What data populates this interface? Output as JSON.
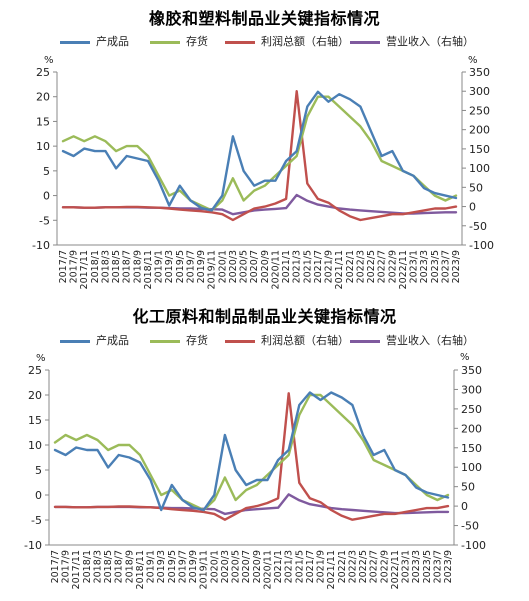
{
  "colors": {
    "product": "#4a7fb5",
    "inventory": "#9bbb59",
    "profit": "#c0504d",
    "revenue": "#7f5a9e",
    "axis": "#888888",
    "text": "#222222"
  },
  "chart_data": [
    {
      "type": "line",
      "title": "橡胶和塑料制品业关键指标情况",
      "left_unit": "%",
      "right_unit": "%",
      "ylim_left": [
        -10,
        25
      ],
      "ylim_right": [
        -100,
        350
      ],
      "yticks_left": [
        "25",
        "20",
        "15",
        "10",
        "5",
        "0",
        "-5",
        "-10"
      ],
      "yticks_right": [
        "350",
        "300",
        "250",
        "200",
        "150",
        "100",
        "50",
        "0",
        "-50",
        "-100"
      ],
      "categories": [
        "2017/7",
        "2017/9",
        "2017/11",
        "2018/1",
        "2018/3",
        "2018/5",
        "2018/7",
        "2018/9",
        "2018/11",
        "2019/1",
        "2019/3",
        "2019/5",
        "2019/7",
        "2019/9",
        "2019/11",
        "2020/1",
        "2020/3",
        "2020/5",
        "2020/7",
        "2020/9",
        "2020/11",
        "2021/1",
        "2021/3",
        "2021/5",
        "2021/7",
        "2021/9",
        "2021/11",
        "2022/1",
        "2022/3",
        "2022/5",
        "2022/7",
        "2022/9",
        "2022/11",
        "2023/1",
        "2023/3",
        "2023/5",
        "2023/7",
        "2023/9"
      ],
      "series": [
        {
          "name": "产成品",
          "axis": "left",
          "color_key": "product",
          "values": [
            9,
            8,
            9.5,
            9,
            9,
            5.5,
            8,
            7.5,
            7,
            3,
            -2,
            2,
            -1,
            -2.5,
            -3,
            0,
            12,
            5,
            2,
            3,
            3,
            7,
            9,
            18,
            21,
            19,
            20.5,
            19.5,
            18,
            13,
            8,
            9,
            5,
            4,
            1.5,
            0.5,
            0,
            -0.5
          ]
        },
        {
          "name": "存货",
          "axis": "left",
          "color_key": "inventory",
          "values": [
            11,
            12,
            11,
            12,
            11,
            9,
            10,
            10,
            8,
            4,
            0,
            1,
            -1,
            -2,
            -3,
            -1,
            3.5,
            -1,
            1,
            2,
            4,
            6,
            8,
            16,
            20,
            20,
            18,
            16,
            14,
            11,
            7,
            6,
            5,
            4,
            2,
            0,
            -1,
            0
          ]
        },
        {
          "name": "利润总额（右轴）",
          "axis": "right",
          "color_key": "profit",
          "values": [
            -2,
            -2,
            -3,
            -3,
            -2,
            -2,
            -1,
            -1,
            -2,
            -3,
            -5,
            -8,
            -10,
            -12,
            -15,
            -20,
            -35,
            -20,
            -5,
            0,
            8,
            20,
            300,
            60,
            20,
            10,
            -10,
            -25,
            -35,
            -30,
            -25,
            -20,
            -20,
            -15,
            -10,
            -5,
            -5,
            0
          ]
        },
        {
          "name": "营业收入（右轴）",
          "axis": "right",
          "color_key": "revenue",
          "values": [
            -2,
            -2,
            -3,
            -3,
            -2,
            -2,
            -2,
            -2,
            -3,
            -3,
            -4,
            -5,
            -5,
            -6,
            -7,
            -8,
            -20,
            -15,
            -10,
            -8,
            -6,
            -4,
            30,
            15,
            5,
            0,
            -5,
            -8,
            -10,
            -12,
            -14,
            -16,
            -18,
            -18,
            -17,
            -16,
            -15,
            -15
          ]
        }
      ]
    },
    {
      "type": "line",
      "title": "化工原料和制品制品业关键指标情况",
      "left_unit": "%",
      "right_unit": "%",
      "ylim_left": [
        -10,
        25
      ],
      "ylim_right": [
        -100,
        350
      ],
      "yticks_left": [
        "25",
        "20",
        "15",
        "10",
        "5",
        "0",
        "-5",
        "-10"
      ],
      "yticks_right": [
        "350",
        "300",
        "250",
        "200",
        "150",
        "100",
        "50",
        "0",
        "-50",
        "-100"
      ],
      "categories": [
        "2017/7",
        "2017/9",
        "2017/11",
        "2018/1",
        "2018/3",
        "2018/5",
        "2018/7",
        "2018/9",
        "2018/11",
        "2019/1",
        "2019/3",
        "2019/5",
        "2019/7",
        "2019/9",
        "2019/11",
        "2020/1",
        "2020/3",
        "2020/5",
        "2020/7",
        "2020/9",
        "2020/11",
        "2021/1",
        "2021/3",
        "2021/5",
        "2021/7",
        "2021/9",
        "2021/11",
        "2022/1",
        "2022/3",
        "2022/5",
        "2022/7",
        "2022/9",
        "2022/11",
        "2023/1",
        "2023/3",
        "2023/5",
        "2023/7",
        "2023/9"
      ],
      "series": [
        {
          "name": "产成品",
          "axis": "left",
          "color_key": "product",
          "values": [
            9,
            8,
            9.5,
            9,
            9,
            5.5,
            8,
            7.5,
            6.5,
            3,
            -3,
            2,
            -1,
            -2.5,
            -3,
            0,
            12,
            5,
            2,
            3,
            3,
            7,
            9,
            18,
            20.5,
            19,
            20.5,
            19.5,
            18,
            12,
            8,
            9,
            5,
            4,
            1.5,
            0.5,
            0,
            -0.5
          ]
        },
        {
          "name": "存货",
          "axis": "left",
          "color_key": "inventory",
          "values": [
            10.5,
            12,
            11,
            12,
            11,
            9,
            10,
            10,
            8,
            4,
            0,
            1,
            -1,
            -2,
            -3,
            -1,
            3.5,
            -1,
            1,
            2,
            4,
            6,
            8,
            16,
            20,
            20,
            18,
            16,
            14,
            11,
            7,
            6,
            5,
            4,
            2,
            0,
            -1,
            0
          ]
        },
        {
          "name": "利润总额（右轴）",
          "axis": "right",
          "color_key": "profit",
          "values": [
            -2,
            -2,
            -3,
            -3,
            -2,
            -2,
            -1,
            -1,
            -2,
            -3,
            -5,
            -8,
            -10,
            -12,
            -15,
            -20,
            -35,
            -20,
            -5,
            0,
            8,
            20,
            290,
            60,
            20,
            10,
            -10,
            -25,
            -35,
            -30,
            -25,
            -20,
            -20,
            -15,
            -10,
            -5,
            -5,
            0
          ]
        },
        {
          "name": "营业收入（右轴）",
          "axis": "right",
          "color_key": "revenue",
          "values": [
            -2,
            -2,
            -3,
            -3,
            -2,
            -2,
            -2,
            -2,
            -3,
            -3,
            -4,
            -5,
            -5,
            -6,
            -7,
            -8,
            -20,
            -15,
            -10,
            -8,
            -6,
            -4,
            30,
            15,
            5,
            0,
            -5,
            -8,
            -10,
            -12,
            -14,
            -16,
            -18,
            -18,
            -17,
            -16,
            -15,
            -15
          ]
        }
      ]
    }
  ]
}
